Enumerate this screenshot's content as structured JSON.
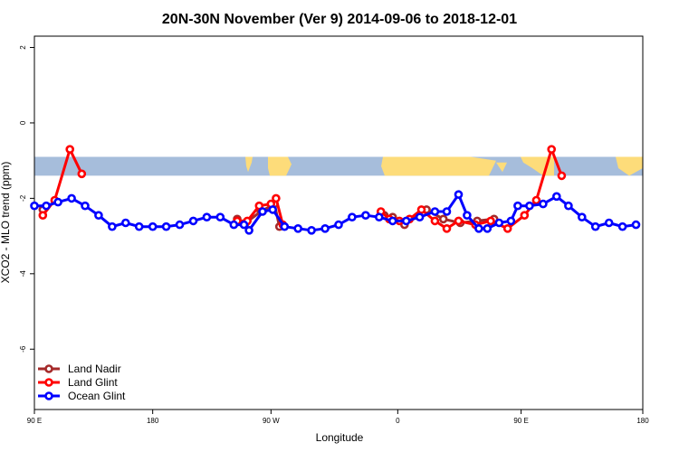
{
  "chart_data": {
    "type": "line",
    "title": "20N-30N November (Ver 9)   2014-09-06 to 2018-12-01",
    "xlabel": "Longitude",
    "ylabel": "XCO2 - MLO trend (ppm)",
    "xlim": [
      90,
      450
    ],
    "ylim": [
      -7.6,
      2.3
    ],
    "x_ticks": [
      {
        "value": 90,
        "label": "90 E"
      },
      {
        "value": 160,
        "label": "180"
      },
      {
        "value": 230,
        "label": "90 W"
      },
      {
        "value": 305,
        "label": "0"
      },
      {
        "value": 378,
        "label": "90 E"
      },
      {
        "value": 450,
        "label": "180"
      }
    ],
    "y_ticks": [
      {
        "value": 2,
        "label": "2"
      },
      {
        "value": 0,
        "label": "0"
      },
      {
        "value": -2,
        "label": "-2"
      },
      {
        "value": -4,
        "label": "-4"
      },
      {
        "value": -6,
        "label": "-6"
      }
    ],
    "map_strip": {
      "y_top": -0.9,
      "y_bottom": -1.4,
      "ocean_color": "#a6bddb",
      "land_color": "#fddc7a"
    },
    "legend_position": "bottom-left",
    "series": [
      {
        "name": "Land Nadir",
        "color": "#a52a2a",
        "points": [
          [
            95,
            -2.3
          ],
          [
            210,
            -2.55
          ],
          [
            215,
            -2.65
          ],
          [
            224,
            -2.35
          ],
          [
            232,
            -2.15
          ],
          [
            235,
            -2.75
          ],
          [
            297,
            -2.45
          ],
          [
            302,
            -2.5
          ],
          [
            309,
            -2.7
          ],
          [
            322,
            -2.3
          ],
          [
            332,
            -2.55
          ],
          [
            342,
            -2.65
          ],
          [
            352,
            -2.6
          ],
          [
            362,
            -2.55
          ]
        ],
        "segments": [
          [
            0,
            0
          ],
          [
            1,
            5
          ],
          [
            6,
            13
          ]
        ]
      },
      {
        "name": "Land Glint",
        "color": "#ff0000",
        "points": [
          [
            95,
            -2.45
          ],
          [
            102,
            -2.05
          ],
          [
            111,
            -0.7
          ],
          [
            118,
            -1.35
          ],
          [
            210,
            -2.6
          ],
          [
            216,
            -2.6
          ],
          [
            223,
            -2.2
          ],
          [
            230,
            -2.15
          ],
          [
            233,
            -2.0
          ],
          [
            237,
            -2.7
          ],
          [
            295,
            -2.35
          ],
          [
            300,
            -2.55
          ],
          [
            306,
            -2.6
          ],
          [
            312,
            -2.55
          ],
          [
            319,
            -2.3
          ],
          [
            327,
            -2.6
          ],
          [
            334,
            -2.8
          ],
          [
            341,
            -2.6
          ],
          [
            351,
            -2.7
          ],
          [
            360,
            -2.6
          ],
          [
            370,
            -2.8
          ],
          [
            380,
            -2.45
          ],
          [
            387,
            -2.05
          ],
          [
            396,
            -0.7
          ],
          [
            402,
            -1.4
          ]
        ],
        "segments": [
          [
            0,
            3
          ],
          [
            4,
            9
          ],
          [
            10,
            24
          ]
        ]
      },
      {
        "name": "Ocean Glint",
        "color": "#0000ff",
        "points": [
          [
            90,
            -2.2
          ],
          [
            97,
            -2.2
          ],
          [
            104,
            -2.1
          ],
          [
            112,
            -2.0
          ],
          [
            120,
            -2.2
          ],
          [
            128,
            -2.45
          ],
          [
            136,
            -2.75
          ],
          [
            144,
            -2.65
          ],
          [
            152,
            -2.75
          ],
          [
            160,
            -2.75
          ],
          [
            168,
            -2.75
          ],
          [
            176,
            -2.7
          ],
          [
            184,
            -2.6
          ],
          [
            192,
            -2.5
          ],
          [
            200,
            -2.5
          ],
          [
            208,
            -2.7
          ],
          [
            214,
            -2.7
          ],
          [
            217,
            -2.85
          ],
          [
            225,
            -2.35
          ],
          [
            231,
            -2.3
          ],
          [
            238,
            -2.75
          ],
          [
            246,
            -2.8
          ],
          [
            254,
            -2.85
          ],
          [
            262,
            -2.8
          ],
          [
            270,
            -2.7
          ],
          [
            278,
            -2.5
          ],
          [
            286,
            -2.45
          ],
          [
            294,
            -2.5
          ],
          [
            302,
            -2.6
          ],
          [
            310,
            -2.6
          ],
          [
            318,
            -2.5
          ],
          [
            327,
            -2.35
          ],
          [
            334,
            -2.35
          ],
          [
            341,
            -1.9
          ],
          [
            346,
            -2.45
          ],
          [
            353,
            -2.8
          ],
          [
            358,
            -2.8
          ],
          [
            365,
            -2.65
          ],
          [
            372,
            -2.6
          ],
          [
            376,
            -2.2
          ],
          [
            383,
            -2.2
          ],
          [
            391,
            -2.15
          ],
          [
            399,
            -1.95
          ],
          [
            406,
            -2.2
          ],
          [
            414,
            -2.5
          ],
          [
            422,
            -2.75
          ],
          [
            430,
            -2.65
          ],
          [
            438,
            -2.75
          ],
          [
            446,
            -2.7
          ]
        ],
        "segments": [
          [
            0,
            48
          ]
        ]
      }
    ]
  }
}
